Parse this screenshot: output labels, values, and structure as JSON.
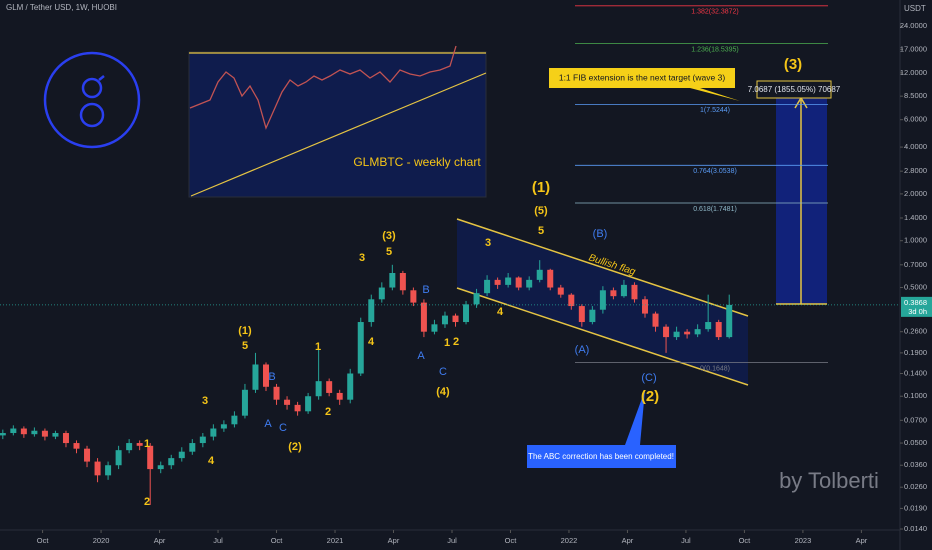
{
  "chart_data": {
    "type": "candlestick",
    "title": "GLM / Tether USD, 1W, HUOBI",
    "y_unit": "USDT",
    "subtitle": "GLMBTC - weekly chart",
    "watermark": "by Tolberti",
    "log_scale": true,
    "colors": {
      "up": "#26a69a",
      "down": "#ef5350"
    },
    "xlim": [
      2019.568,
      2023.415
    ],
    "ylim": [
      0.0138,
      35.3
    ],
    "xticks": [
      {
        "value": 2019.75,
        "label": "Oct"
      },
      2020,
      {
        "value": 2020.25,
        "label": "Apr"
      },
      {
        "value": 2020.5,
        "label": "Jul"
      },
      {
        "value": 2020.75,
        "label": "Oct"
      },
      2021,
      {
        "value": 2021.25,
        "label": "Apr"
      },
      {
        "value": 2021.5,
        "label": "Jul"
      },
      {
        "value": 2021.75,
        "label": "Oct"
      },
      2022,
      {
        "value": 2022.25,
        "label": "Apr"
      },
      {
        "value": 2022.5,
        "label": "Jul"
      },
      {
        "value": 2022.75,
        "label": "Oct"
      },
      2023,
      {
        "value": 2023.25,
        "label": "Apr"
      }
    ],
    "yticks": [
      {
        "value": 0.014,
        "label": "0.0140"
      },
      {
        "value": 0.019,
        "label": "0.0190"
      },
      {
        "value": 0.026,
        "label": "0.0260"
      },
      {
        "value": 0.036,
        "label": "0.0360"
      },
      {
        "value": 0.05,
        "label": "0.0500"
      },
      {
        "value": 0.07,
        "label": "0.0700"
      },
      {
        "value": 0.1,
        "label": "0.1000"
      },
      {
        "value": 0.14,
        "label": "0.1400"
      },
      {
        "value": 0.19,
        "label": "0.1900"
      },
      {
        "value": 0.26,
        "label": "0.2600"
      },
      {
        "value": 0.5,
        "label": "0.5000"
      },
      {
        "value": 0.7,
        "label": "0.7000"
      },
      {
        "value": 1,
        "label": "1.0000"
      },
      {
        "value": 1.4,
        "label": "1.4000"
      },
      {
        "value": 2,
        "label": "2.0000"
      },
      {
        "value": 2.8,
        "label": "2.8000"
      },
      {
        "value": 4,
        "label": "4.0000"
      },
      {
        "value": 6,
        "label": "6.0000"
      },
      {
        "value": 8.5,
        "label": "8.5000"
      },
      {
        "value": 12,
        "label": "12.0000"
      },
      {
        "value": 17,
        "label": "17.0000"
      },
      {
        "value": 24,
        "label": "24.0000"
      }
    ],
    "x": [
      2019.58,
      2019.625,
      2019.67,
      2019.715,
      2019.76,
      2019.805,
      2019.85,
      2019.895,
      2019.94,
      2019.985,
      2020.03,
      2020.075,
      2020.12,
      2020.165,
      2020.21,
      2020.255,
      2020.3,
      2020.345,
      2020.39,
      2020.435,
      2020.48,
      2020.525,
      2020.57,
      2020.615,
      2020.66,
      2020.705,
      2020.75,
      2020.795,
      2020.84,
      2020.885,
      2020.93,
      2020.975,
      2021.02,
      2021.065,
      2021.11,
      2021.155,
      2021.2,
      2021.245,
      2021.29,
      2021.335,
      2021.38,
      2021.425,
      2021.47,
      2021.515,
      2021.56,
      2021.605,
      2021.65,
      2021.695,
      2021.74,
      2021.785,
      2021.83,
      2021.875,
      2021.92,
      2021.965,
      2022.01,
      2022.055,
      2022.1,
      2022.145,
      2022.19,
      2022.235,
      2022.28,
      2022.325,
      2022.37,
      2022.415,
      2022.46,
      2022.505,
      2022.55,
      2022.595,
      2022.64,
      2022.685
    ],
    "open": [
      0.056,
      0.058,
      0.062,
      0.057,
      0.06,
      0.055,
      0.058,
      0.05,
      0.046,
      0.038,
      0.031,
      0.036,
      0.045,
      0.05,
      0.048,
      0.034,
      0.036,
      0.04,
      0.044,
      0.05,
      0.055,
      0.062,
      0.066,
      0.075,
      0.11,
      0.16,
      0.115,
      0.095,
      0.088,
      0.08,
      0.1,
      0.125,
      0.105,
      0.095,
      0.14,
      0.3,
      0.42,
      0.5,
      0.62,
      0.48,
      0.4,
      0.26,
      0.29,
      0.33,
      0.3,
      0.39,
      0.46,
      0.56,
      0.52,
      0.58,
      0.5,
      0.56,
      0.65,
      0.5,
      0.45,
      0.38,
      0.3,
      0.36,
      0.48,
      0.44,
      0.52,
      0.42,
      0.34,
      0.28,
      0.24,
      0.26,
      0.25,
      0.27,
      0.3,
      0.24
    ],
    "high": [
      0.061,
      0.065,
      0.064,
      0.063,
      0.062,
      0.06,
      0.06,
      0.052,
      0.048,
      0.04,
      0.038,
      0.048,
      0.053,
      0.052,
      0.05,
      0.038,
      0.042,
      0.047,
      0.053,
      0.058,
      0.066,
      0.07,
      0.08,
      0.12,
      0.19,
      0.165,
      0.12,
      0.1,
      0.092,
      0.105,
      0.2,
      0.13,
      0.11,
      0.15,
      0.32,
      0.45,
      0.54,
      0.7,
      0.64,
      0.5,
      0.42,
      0.31,
      0.35,
      0.34,
      0.41,
      0.49,
      0.6,
      0.58,
      0.62,
      0.59,
      0.59,
      0.75,
      0.66,
      0.52,
      0.46,
      0.39,
      0.38,
      0.51,
      0.5,
      0.56,
      0.54,
      0.44,
      0.35,
      0.29,
      0.28,
      0.27,
      0.29,
      0.45,
      0.31,
      0.45
    ],
    "low": [
      0.053,
      0.056,
      0.054,
      0.055,
      0.052,
      0.053,
      0.047,
      0.043,
      0.035,
      0.028,
      0.029,
      0.034,
      0.043,
      0.045,
      0.02,
      0.032,
      0.034,
      0.038,
      0.042,
      0.047,
      0.052,
      0.059,
      0.063,
      0.072,
      0.105,
      0.108,
      0.088,
      0.082,
      0.075,
      0.077,
      0.095,
      0.1,
      0.088,
      0.09,
      0.135,
      0.28,
      0.4,
      0.48,
      0.45,
      0.38,
      0.24,
      0.25,
      0.275,
      0.28,
      0.29,
      0.37,
      0.44,
      0.49,
      0.5,
      0.48,
      0.48,
      0.54,
      0.48,
      0.43,
      0.36,
      0.28,
      0.29,
      0.34,
      0.42,
      0.43,
      0.4,
      0.32,
      0.26,
      0.19,
      0.23,
      0.235,
      0.24,
      0.26,
      0.23,
      0.235
    ],
    "close": [
      0.058,
      0.062,
      0.057,
      0.06,
      0.055,
      0.058,
      0.05,
      0.046,
      0.038,
      0.031,
      0.036,
      0.045,
      0.05,
      0.048,
      0.034,
      0.036,
      0.04,
      0.044,
      0.05,
      0.055,
      0.062,
      0.066,
      0.075,
      0.11,
      0.16,
      0.115,
      0.095,
      0.088,
      0.08,
      0.1,
      0.125,
      0.105,
      0.095,
      0.14,
      0.3,
      0.42,
      0.5,
      0.62,
      0.48,
      0.4,
      0.26,
      0.29,
      0.33,
      0.3,
      0.39,
      0.46,
      0.56,
      0.52,
      0.58,
      0.5,
      0.56,
      0.65,
      0.5,
      0.45,
      0.38,
      0.3,
      0.36,
      0.48,
      0.44,
      0.52,
      0.42,
      0.34,
      0.28,
      0.24,
      0.26,
      0.25,
      0.27,
      0.3,
      0.24,
      0.3868
    ],
    "countdown": "3d 0h",
    "fib_levels": [
      {
        "value": 32.3872,
        "label": "1.382(32.3872)"
      },
      {
        "value": 18.5395,
        "label": "1.236(18.5395)"
      },
      {
        "value": 7.5244,
        "label": "1(7.5244)"
      },
      {
        "value": 3.0538,
        "label": "0.764(3.0538)"
      },
      {
        "value": 1.7481,
        "label": "0.618(1.7481)"
      },
      {
        "value": 0.1648,
        "label": "0(0.1648)"
      }
    ],
    "wave_labels": [
      "1",
      "2",
      "3",
      "4",
      "(1)",
      "5",
      "(2)",
      "1",
      "2",
      "3",
      "4",
      "(3)",
      "5",
      "1",
      "2",
      "(4)",
      "3",
      "4",
      "(1)",
      "(5)",
      "5",
      "(2)",
      "(3)"
    ],
    "abc_labels": [
      "B",
      "A",
      "C",
      "B",
      "A",
      "C",
      "(B)",
      "(A)",
      "(C)"
    ],
    "flag_label": "Bullish flag",
    "callout_target": "1:1 FIB extension is the next target (wave 3)",
    "target_label": "7.0687 (1855.05%) 70687",
    "callout_abc": "The ABC correction has been completed!"
  }
}
